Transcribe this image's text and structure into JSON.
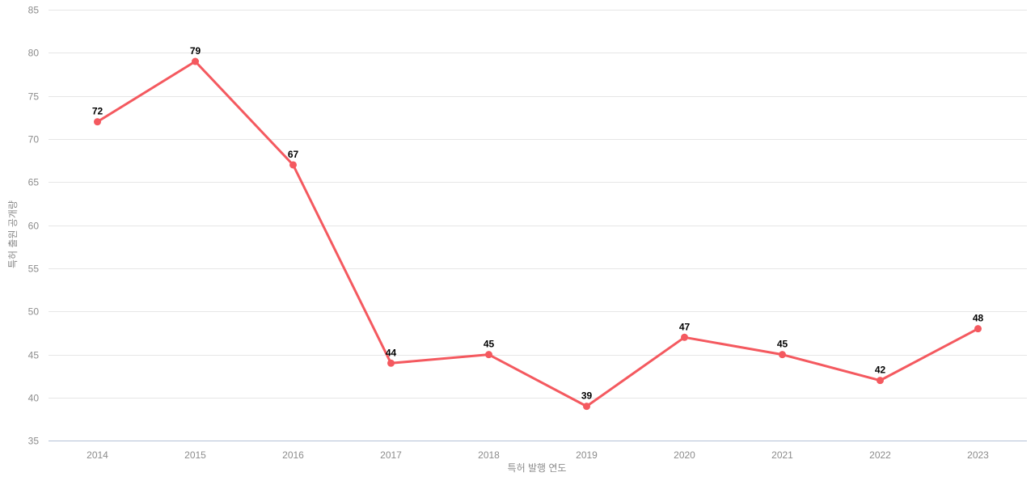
{
  "chart_data": {
    "type": "line",
    "x": [
      2014,
      2015,
      2016,
      2017,
      2018,
      2019,
      2020,
      2021,
      2022,
      2023
    ],
    "series": [
      {
        "name": "특허 출원 공개량",
        "values": [
          72,
          79,
          67,
          44,
          45,
          39,
          47,
          45,
          42,
          48
        ]
      }
    ],
    "title": "",
    "xlabel": "특허 발행 연도",
    "ylabel": "특허 출원 공개량",
    "ylim": [
      35,
      85
    ],
    "ytick_step": 5,
    "yticks": [
      35,
      40,
      45,
      50,
      55,
      60,
      65,
      70,
      75,
      80,
      85
    ],
    "grid": true,
    "legend_position": "none",
    "colors": {
      "line": "#f4595f",
      "marker": "#f4595f",
      "data_label": "#000000",
      "grid_line": "#e6e6e6",
      "axis_line": "#b4c1d6",
      "tick_label": "#8c8c8c",
      "axis_title": "#8c8c8c",
      "background": "#ffffff"
    }
  }
}
